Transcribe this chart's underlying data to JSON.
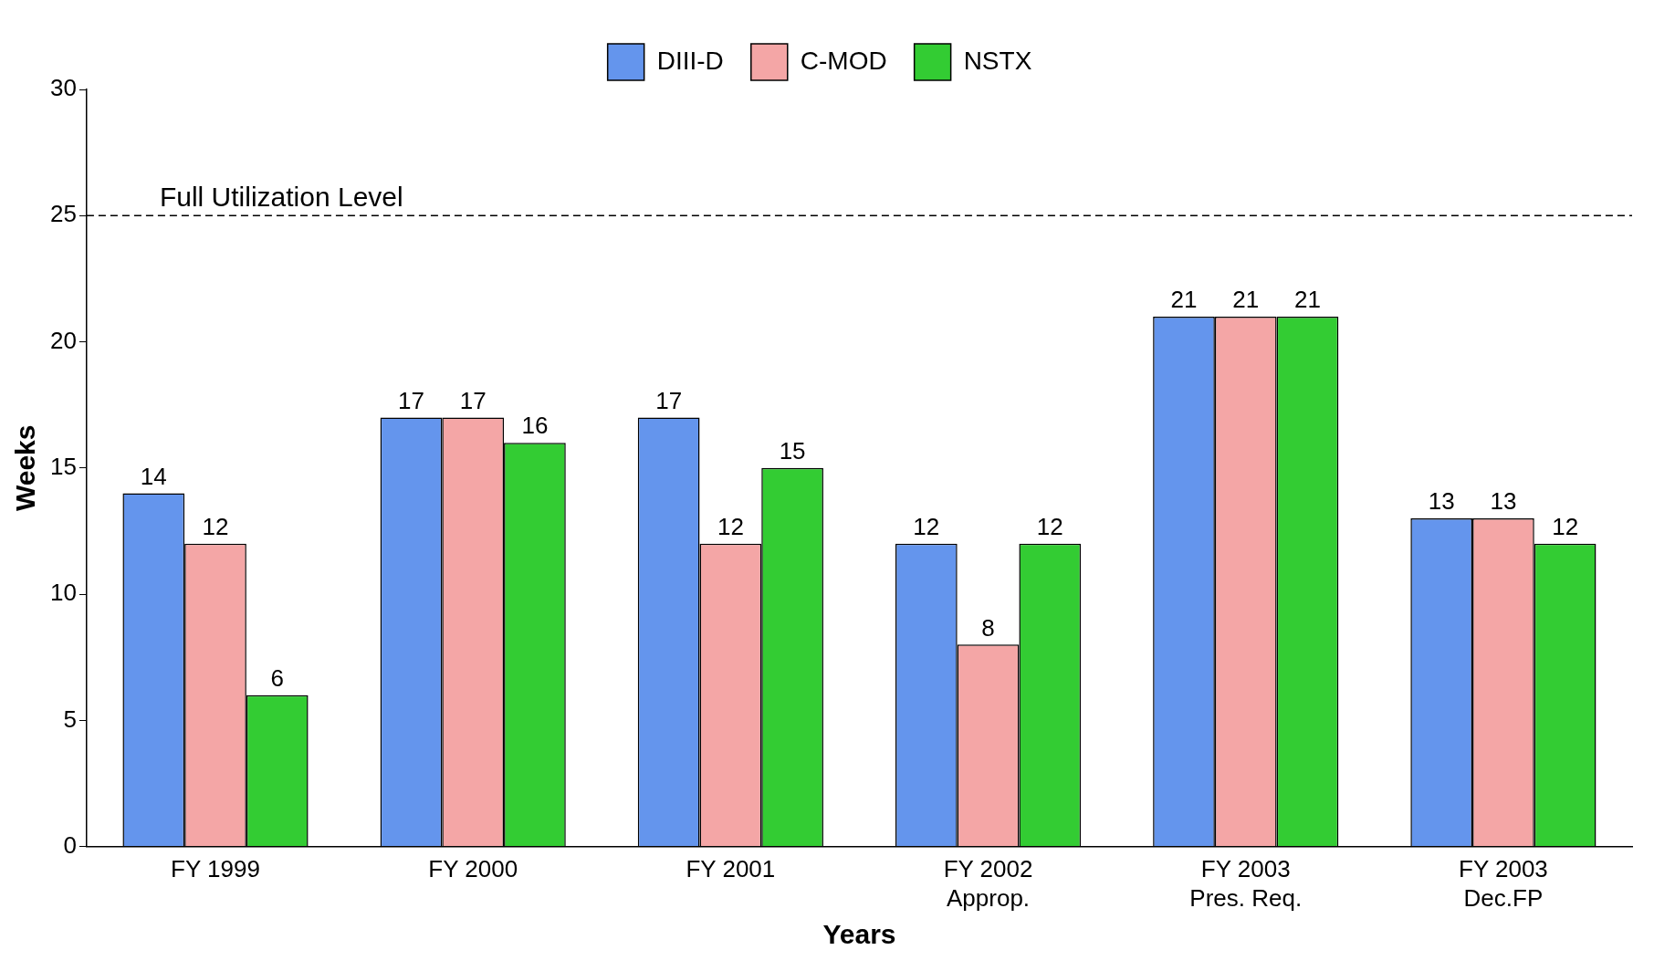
{
  "chart_data": {
    "type": "bar",
    "xlabel": "Years",
    "ylabel": "Weeks",
    "categories": [
      "FY 1999",
      "FY 2000",
      "FY 2001",
      "FY 2002\nApprop.",
      "FY 2003\nPres. Req.",
      "FY 2003\nDec.FP"
    ],
    "series": [
      {
        "name": "DIII-D",
        "color": "#6495ed",
        "values": [
          14,
          17,
          17,
          12,
          21,
          13
        ]
      },
      {
        "name": "C-MOD",
        "color": "#f4a6a6",
        "values": [
          12,
          17,
          12,
          8,
          21,
          13
        ]
      },
      {
        "name": "NSTX",
        "color": "#33cc33",
        "values": [
          6,
          16,
          15,
          12,
          21,
          12
        ]
      }
    ],
    "ylim": [
      0,
      30
    ],
    "yticks": [
      0,
      5,
      10,
      15,
      20,
      25,
      30
    ],
    "grid": false,
    "legend": "top",
    "data_labels": true,
    "ref_lines": [
      {
        "axis": "y",
        "value": 25,
        "label": "Full Utilization Level",
        "line_style": "dashed",
        "color": "#000000"
      }
    ]
  }
}
